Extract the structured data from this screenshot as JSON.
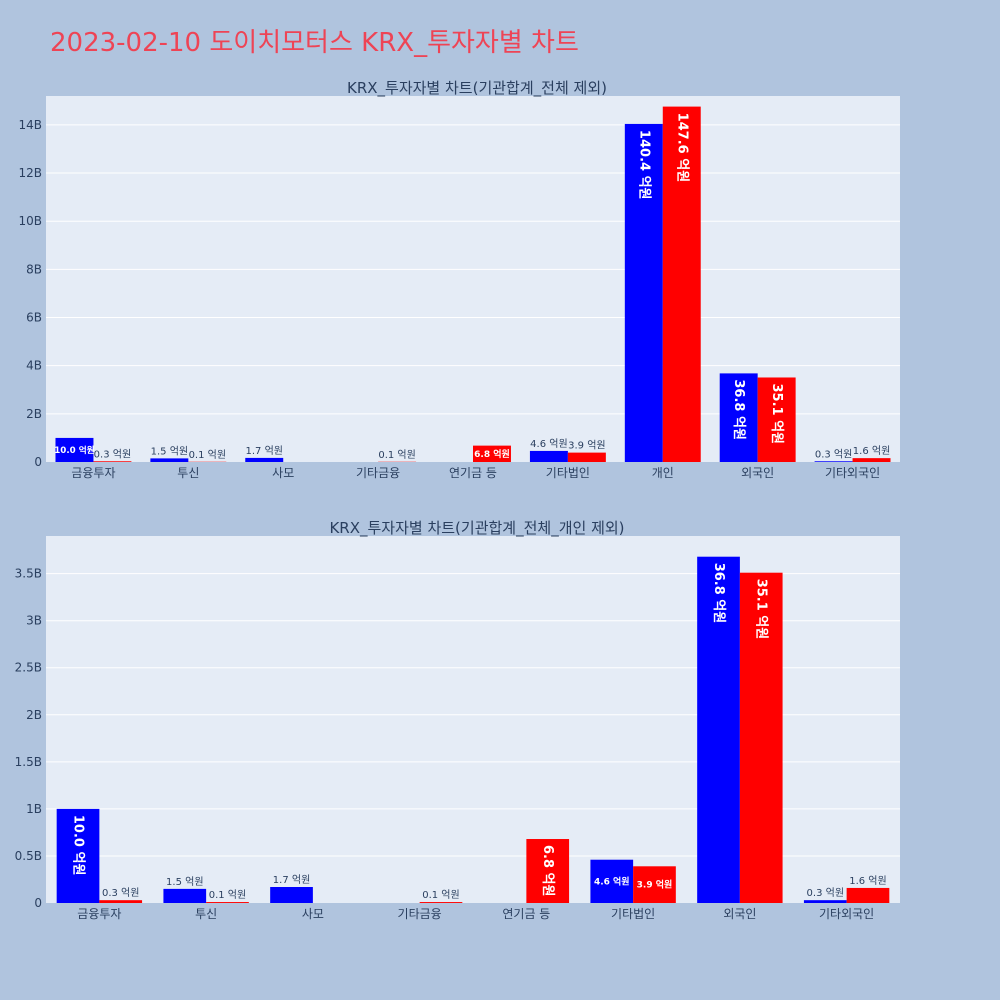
{
  "title": "2023-02-10 도이치모터스 KRX_투자자별 차트",
  "colors": {
    "background": "#b0c4de",
    "plot_bg": "#e5ecf6",
    "grid": "#ffffff",
    "title": "#ee4455",
    "buy": "#0000ff",
    "sell": "#ff0000"
  },
  "chart_data": [
    {
      "type": "bar",
      "title": "KRX_투자자별 차트(기관합계_전체 제외)",
      "categories": [
        "금융투자",
        "투신",
        "사모",
        "기타금융",
        "연기금 등",
        "기타법인",
        "개인",
        "외국인",
        "기타외국인"
      ],
      "series": [
        {
          "values": [
            1.0,
            0.15,
            0.17,
            0.0,
            0.0,
            0.46,
            14.04,
            3.68,
            0.03
          ],
          "labels": [
            "10.0 억원",
            "1.5 억원",
            "1.7 억원",
            "",
            "",
            "4.6 억원",
            "140.4 억원",
            "36.8 억원",
            "0.3 억원"
          ]
        },
        {
          "values": [
            0.03,
            0.01,
            0.0,
            0.01,
            0.68,
            0.39,
            14.76,
            3.51,
            0.16
          ],
          "labels": [
            "0.3 억원",
            "0.1 억원",
            "",
            "0.1 억원",
            "6.8 억원",
            "3.9 억원",
            "147.6 억원",
            "35.1 억원",
            "1.6 억원"
          ]
        }
      ],
      "ylim": [
        0,
        15.2
      ],
      "yticks": [
        0,
        2,
        4,
        6,
        8,
        10,
        12,
        14
      ],
      "yticklabels": [
        "0",
        "2B",
        "4B",
        "6B",
        "8B",
        "10B",
        "12B",
        "14B"
      ],
      "grid": true
    },
    {
      "type": "bar",
      "title": "KRX_투자자별 차트(기관합계_전체_개인 제외)",
      "categories": [
        "금융투자",
        "투신",
        "사모",
        "기타금융",
        "연기금 등",
        "기타법인",
        "외국인",
        "기타외국인"
      ],
      "series": [
        {
          "values": [
            1.0,
            0.15,
            0.17,
            0.0,
            0.0,
            0.46,
            3.68,
            0.03
          ],
          "labels": [
            "10.0 억원",
            "1.5 억원",
            "1.7 억원",
            "",
            "",
            "4.6 억원",
            "36.8 억원",
            "0.3 억원"
          ]
        },
        {
          "values": [
            0.03,
            0.01,
            0.0,
            0.01,
            0.68,
            0.39,
            3.51,
            0.16
          ],
          "labels": [
            "0.3 억원",
            "0.1 억원",
            "",
            "0.1 억원",
            "6.8 억원",
            "3.9 억원",
            "35.1 억원",
            "1.6 억원"
          ]
        }
      ],
      "ylim": [
        0,
        3.9
      ],
      "yticks": [
        0,
        0.5,
        1,
        1.5,
        2,
        2.5,
        3,
        3.5
      ],
      "yticklabels": [
        "0",
        "0.5B",
        "1B",
        "1.5B",
        "2B",
        "2.5B",
        "3B",
        "3.5B"
      ],
      "grid": true
    }
  ]
}
